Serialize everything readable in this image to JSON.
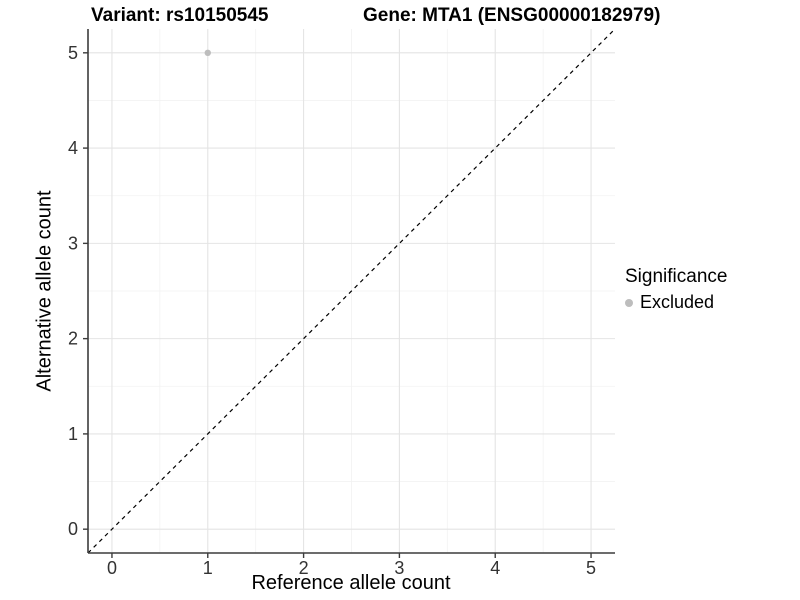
{
  "chart_data": {
    "type": "scatter",
    "title_left": "Variant: rs10150545",
    "title_right": "Gene: MTA1 (ENSG00000182979)",
    "xlabel": "Reference allele count",
    "ylabel": "Alternative allele count",
    "xlim": [
      -0.25,
      5.25
    ],
    "ylim": [
      -0.25,
      5.25
    ],
    "xticks": [
      0,
      1,
      2,
      3,
      4,
      5
    ],
    "yticks": [
      0,
      1,
      2,
      3,
      4,
      5
    ],
    "grid": "major-and-minor",
    "reference_line": {
      "type": "identity",
      "style": "dashed",
      "color": "#000000"
    },
    "series": [
      {
        "name": "Excluded",
        "color": "#bdbdbd",
        "points": [
          {
            "x": 1,
            "y": 5
          }
        ]
      }
    ],
    "legend": {
      "title": "Significance",
      "position": "right",
      "entries": [
        {
          "label": "Excluded",
          "color": "#bdbdbd"
        }
      ]
    }
  },
  "colors": {
    "background": "#ffffff",
    "major_grid": "#e4e4e4",
    "minor_grid": "#f2f2f2",
    "axis_line": "#3c3c3c",
    "tick_text": "#333333",
    "title_text": "#000000",
    "point": "#bdbdbd"
  }
}
